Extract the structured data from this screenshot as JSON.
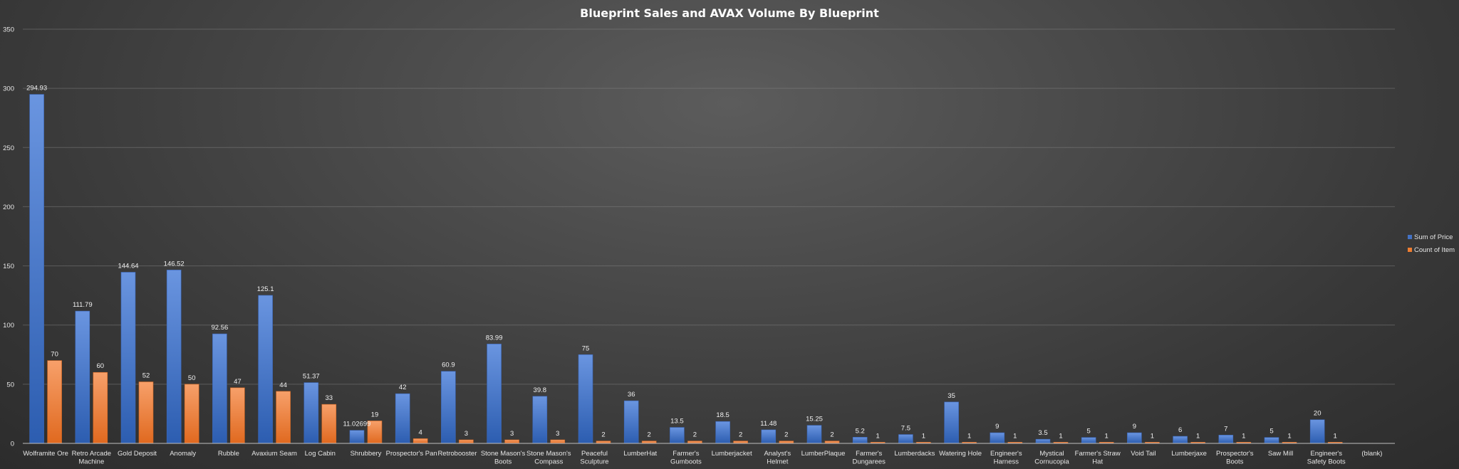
{
  "chart_data": {
    "type": "bar",
    "title": "Blueprint Sales and AVAX Volume By Blueprint",
    "ylim": [
      0,
      350
    ],
    "yticks": [
      "0",
      "50",
      "100",
      "150",
      "200",
      "250",
      "300",
      "350"
    ],
    "grid": true,
    "legend_position": "right",
    "categories": [
      "Wolframite Ore",
      "Retro Arcade Machine",
      "Gold Deposit",
      "Anomaly",
      "Rubble",
      "Avaxium Seam",
      "Log Cabin",
      "Shrubbery",
      "Prospector's Pan",
      "Retrobooster",
      "Stone Mason's Boots",
      "Stone Mason's Compass",
      "Peaceful Sculpture",
      "LumberHat",
      "Farmer's Gumboots",
      "Lumberjacket",
      "Analyst's Helmet",
      "LumberPlaque",
      "Farmer's Dungarees",
      "Lumberdacks",
      "Watering Hole",
      "Engineer's Harness",
      "Mystical Cornucopia",
      "Farmer's Straw Hat",
      "Void Tail",
      "Lumberjaxe",
      "Prospector's Boots",
      "Saw Mill",
      "Engineer's Safety Boots",
      "(blank)"
    ],
    "category_lines": [
      [
        "Wolframite Ore"
      ],
      [
        "Retro Arcade",
        "Machine"
      ],
      [
        "Gold Deposit"
      ],
      [
        "Anomaly"
      ],
      [
        "Rubble"
      ],
      [
        "Avaxium Seam"
      ],
      [
        "Log Cabin"
      ],
      [
        "Shrubbery"
      ],
      [
        "Prospector's Pan"
      ],
      [
        "Retrobooster"
      ],
      [
        "Stone Mason's",
        "Boots"
      ],
      [
        "Stone Mason's",
        "Compass"
      ],
      [
        "Peaceful",
        "Sculpture"
      ],
      [
        "LumberHat"
      ],
      [
        "Farmer's",
        "Gumboots"
      ],
      [
        "Lumberjacket"
      ],
      [
        "Analyst's",
        "Helmet"
      ],
      [
        "LumberPlaque"
      ],
      [
        "Farmer's",
        "Dungarees"
      ],
      [
        "Lumberdacks"
      ],
      [
        "Watering Hole"
      ],
      [
        "Engineer's",
        "Harness"
      ],
      [
        "Mystical",
        "Cornucopia"
      ],
      [
        "Farmer's Straw",
        "Hat"
      ],
      [
        "Void Tail"
      ],
      [
        "Lumberjaxe"
      ],
      [
        "Prospector's",
        "Boots"
      ],
      [
        "Saw Mill"
      ],
      [
        "Engineer's",
        "Safety Boots"
      ],
      [
        "(blank)"
      ]
    ],
    "series": [
      {
        "name": "Sum of Price",
        "color": "#4472C4",
        "values": [
          294.93,
          111.79,
          144.64,
          146.52,
          92.56,
          125.1,
          51.37,
          11.02699,
          42,
          60.9,
          83.99,
          39.8,
          75,
          36,
          13.5,
          18.5,
          11.48,
          15.25,
          5.2,
          7.5,
          35,
          9,
          3.5,
          5,
          9,
          6,
          7,
          5,
          20,
          null
        ],
        "labels": [
          "294.93",
          "111.79",
          "144.64",
          "146.52",
          "92.56",
          "125.1",
          "51.37",
          "11.02699",
          "42",
          "60.9",
          "83.99",
          "39.8",
          "75",
          "36",
          "13.5",
          "18.5",
          "11.48",
          "15.25",
          "5.2",
          "7.5",
          "35",
          "9",
          "3.5",
          "5",
          "9",
          "6",
          "7",
          "5",
          "20",
          ""
        ]
      },
      {
        "name": "Count of Item",
        "color": "#ED7D31",
        "values": [
          70,
          60,
          52,
          50,
          47,
          44,
          33,
          19,
          4,
          3,
          3,
          3,
          2,
          2,
          2,
          2,
          2,
          2,
          1,
          1,
          1,
          1,
          1,
          1,
          1,
          1,
          1,
          1,
          1,
          null
        ],
        "labels": [
          "70",
          "60",
          "52",
          "50",
          "47",
          "44",
          "33",
          "19",
          "4",
          "3",
          "3",
          "3",
          "2",
          "2",
          "2",
          "2",
          "2",
          "2",
          "1",
          "1",
          "1",
          "1",
          "1",
          "1",
          "1",
          "1",
          "1",
          "1",
          "1",
          ""
        ]
      }
    ]
  }
}
